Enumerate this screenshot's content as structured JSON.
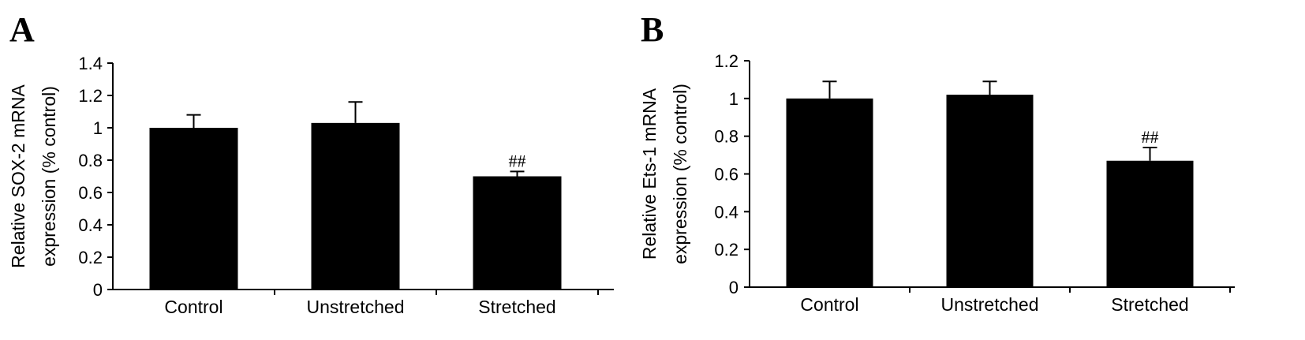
{
  "chart_data": [
    {
      "type": "bar",
      "panel_label": "A",
      "categories": [
        "Control",
        "Unstretched",
        "Stretched"
      ],
      "values": [
        1.0,
        1.03,
        0.7
      ],
      "errors": [
        0.08,
        0.13,
        0.03
      ],
      "annotations": [
        "",
        "",
        "##"
      ],
      "ylabel_lines": [
        "Relative SOX-2 mRNA",
        "expression (% control)"
      ],
      "ylim": [
        0,
        1.4
      ],
      "yticks": [
        0,
        0.2,
        0.4,
        0.6,
        0.8,
        1,
        1.2,
        1.4
      ],
      "ytick_labels": [
        "0",
        "0.2",
        "0.4",
        "0.6",
        "0.8",
        "1",
        "1.2",
        "1.4"
      ],
      "bar_color": "#000000"
    },
    {
      "type": "bar",
      "panel_label": "B",
      "categories": [
        "Control",
        "Unstretched",
        "Stretched"
      ],
      "values": [
        1.0,
        1.02,
        0.67
      ],
      "errors": [
        0.09,
        0.07,
        0.07
      ],
      "annotations": [
        "",
        "",
        "##"
      ],
      "ylabel_lines": [
        "Relative Ets-1 mRNA",
        "expression (% control)"
      ],
      "ylim": [
        0,
        1.2
      ],
      "yticks": [
        0,
        0.2,
        0.4,
        0.6,
        0.8,
        1,
        1.2
      ],
      "ytick_labels": [
        "0",
        "0.2",
        "0.4",
        "0.6",
        "0.8",
        "1",
        "1.2"
      ],
      "bar_color": "#000000"
    }
  ]
}
